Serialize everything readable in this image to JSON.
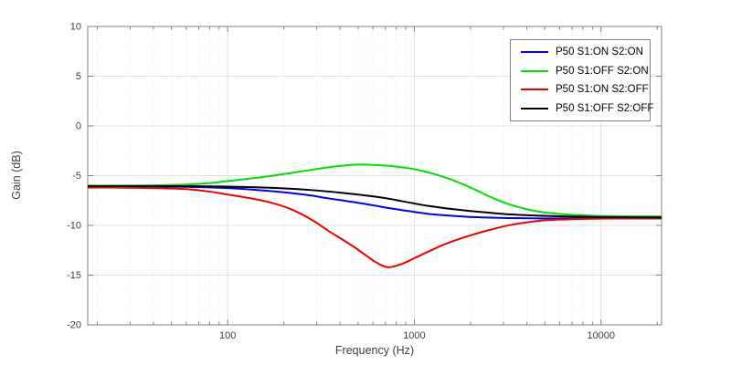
{
  "figure": {
    "background": "#ffffff"
  },
  "chart_data": {
    "type": "line",
    "title": "",
    "xlabel": "Frequency (Hz)",
    "ylabel": "Gain (dB)",
    "x_scale": "log",
    "xlim": [
      17.8,
      21100
    ],
    "ylim": [
      -20,
      10
    ],
    "grid": true,
    "legend_position": "top-right",
    "x_major_ticks": [
      100,
      1000,
      10000
    ],
    "x_major_tick_labels": [
      "100",
      "1000",
      "10000"
    ],
    "x_minor_ticks": [
      20,
      30,
      40,
      50,
      60,
      70,
      80,
      90,
      200,
      300,
      400,
      500,
      600,
      700,
      800,
      900,
      2000,
      3000,
      4000,
      5000,
      6000,
      7000,
      8000,
      9000,
      20000
    ],
    "y_ticks": [
      10,
      5,
      0,
      -5,
      -10,
      -15,
      -20
    ],
    "y_tick_labels": [
      "10",
      "5",
      "0",
      "-5",
      "-10",
      "-15",
      "-20"
    ],
    "x": [
      16,
      25,
      40,
      60,
      80,
      100,
      130,
      170,
      220,
      280,
      350,
      470,
      610,
      720,
      850,
      1000,
      1200,
      1500,
      2000,
      2600,
      3300,
      4600,
      6500,
      9000,
      13000,
      22000
    ],
    "series": [
      {
        "name": "P50 S1:ON S2:ON",
        "color": "#0000ee",
        "values": [
          -6.1,
          -6.1,
          -6.1,
          -6.12,
          -6.18,
          -6.25,
          -6.38,
          -6.55,
          -6.75,
          -7.0,
          -7.3,
          -7.65,
          -8.0,
          -8.25,
          -8.45,
          -8.65,
          -8.85,
          -9.0,
          -9.15,
          -9.22,
          -9.27,
          -9.3,
          -9.3,
          -9.3,
          -9.3,
          -9.3
        ]
      },
      {
        "name": "P50 S1:OFF S2:ON",
        "color": "#00e000",
        "values": [
          -6.0,
          -6.0,
          -5.97,
          -5.9,
          -5.75,
          -5.55,
          -5.3,
          -5.03,
          -4.72,
          -4.42,
          -4.15,
          -3.9,
          -3.92,
          -4.0,
          -4.15,
          -4.35,
          -4.7,
          -5.25,
          -6.2,
          -7.2,
          -7.95,
          -8.6,
          -8.9,
          -9.02,
          -9.08,
          -9.1
        ]
      },
      {
        "name": "P50 S1:ON S2:OFF",
        "color": "#ee0000",
        "values": [
          -6.2,
          -6.2,
          -6.25,
          -6.35,
          -6.6,
          -6.9,
          -7.25,
          -7.7,
          -8.4,
          -9.4,
          -10.6,
          -12.1,
          -13.6,
          -14.2,
          -13.9,
          -13.3,
          -12.6,
          -11.8,
          -11.0,
          -10.4,
          -9.95,
          -9.55,
          -9.4,
          -9.33,
          -9.3,
          -9.3
        ]
      },
      {
        "name": "P50 S1:OFF S2:OFF",
        "color": "#000000",
        "values": [
          -6.05,
          -6.05,
          -6.05,
          -6.06,
          -6.08,
          -6.1,
          -6.15,
          -6.22,
          -6.32,
          -6.45,
          -6.6,
          -6.85,
          -7.1,
          -7.3,
          -7.55,
          -7.8,
          -8.05,
          -8.3,
          -8.55,
          -8.75,
          -8.9,
          -9.02,
          -9.1,
          -9.15,
          -9.18,
          -9.2
        ]
      }
    ],
    "colors": {
      "axis_frame": "#7f7f7f",
      "tick": "#7f7f7f",
      "tick_label": "#3d3d3d",
      "grid_major": "#e0e0e0",
      "grid_minor": "#e9e9e9",
      "legend_border": "#808080",
      "legend_background": "#ffffff"
    },
    "line_width": 2
  }
}
